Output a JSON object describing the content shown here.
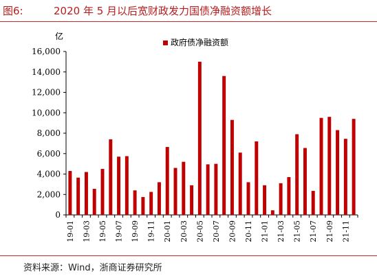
{
  "title": {
    "figure_label": "图6:",
    "text": "2020 年 5 月以后宽财政发力国债净融资额增长"
  },
  "source": "资料来源：Wind，浙商证券研究所",
  "colors": {
    "bar": "#c00000",
    "title": "#b71c1c",
    "rule": "#c62828",
    "axis": "#000000"
  },
  "chart_data": {
    "type": "bar",
    "title": "",
    "xlabel": "",
    "ylabel": "亿",
    "ylim": [
      0,
      16000
    ],
    "yticks": [
      0,
      2000,
      4000,
      6000,
      8000,
      10000,
      12000,
      14000,
      16000
    ],
    "ytick_labels": [
      "0",
      "2,000",
      "4,000",
      "6,000",
      "8,000",
      "10,000",
      "12,000",
      "14,000",
      "16,000"
    ],
    "legend_position": "top-center",
    "grid": false,
    "categories": [
      "19-01",
      "19-02",
      "19-03",
      "19-04",
      "19-05",
      "19-06",
      "19-07",
      "19-08",
      "19-09",
      "19-10",
      "19-11",
      "19-12",
      "20-01",
      "20-02",
      "20-03",
      "20-04",
      "20-05",
      "20-06",
      "20-07",
      "20-08",
      "20-09",
      "20-10",
      "20-11",
      "20-12",
      "21-01",
      "21-02",
      "21-03",
      "21-04",
      "21-05",
      "21-06",
      "21-07",
      "21-08",
      "21-09",
      "21-10",
      "21-11",
      "21-12"
    ],
    "xtick_labels": [
      "19-01",
      "19-03",
      "19-05",
      "19-07",
      "19-09",
      "19-11",
      "20-01",
      "20-03",
      "20-05",
      "20-07",
      "20-09",
      "20-11",
      "21-01",
      "21-03",
      "21-05",
      "21-07",
      "21-09",
      "21-11"
    ],
    "series": [
      {
        "name": "政府债净融资额",
        "values": [
          4300,
          3650,
          4200,
          2550,
          4500,
          7400,
          5700,
          5750,
          2400,
          1750,
          2250,
          3200,
          6650,
          4600,
          5200,
          2900,
          15000,
          4950,
          5000,
          13600,
          9300,
          6100,
          3200,
          7200,
          2900,
          450,
          3100,
          3700,
          7900,
          6550,
          2350,
          9500,
          9600,
          8300,
          7450,
          9400
        ]
      }
    ]
  }
}
